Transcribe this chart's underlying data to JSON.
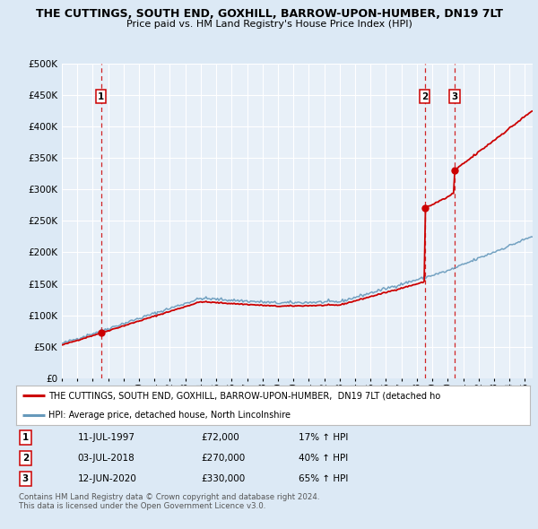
{
  "title": "THE CUTTINGS, SOUTH END, GOXHILL, BARROW-UPON-HUMBER, DN19 7LT",
  "subtitle": "Price paid vs. HM Land Registry's House Price Index (HPI)",
  "bg_color": "#dce9f5",
  "plot_bg_color": "#e8f0f8",
  "ylim": [
    0,
    500000
  ],
  "yticks": [
    0,
    50000,
    100000,
    150000,
    200000,
    250000,
    300000,
    350000,
    400000,
    450000,
    500000
  ],
  "ytick_labels": [
    "£0",
    "£50K",
    "£100K",
    "£150K",
    "£200K",
    "£250K",
    "£300K",
    "£350K",
    "£400K",
    "£450K",
    "£500K"
  ],
  "xlim_start": 1995.0,
  "xlim_end": 2025.5,
  "sale_dates": [
    1997.53,
    2018.5,
    2020.45
  ],
  "sale_prices": [
    72000,
    270000,
    330000
  ],
  "sale_labels": [
    "1",
    "2",
    "3"
  ],
  "sale_date_strs": [
    "11-JUL-1997",
    "03-JUL-2018",
    "12-JUN-2020"
  ],
  "sale_price_strs": [
    "£72,000",
    "£270,000",
    "£330,000"
  ],
  "sale_hpi_strs": [
    "17% ↑ HPI",
    "40% ↑ HPI",
    "65% ↑ HPI"
  ],
  "red_color": "#cc0000",
  "blue_color": "#6699bb",
  "legend_label_red": "THE CUTTINGS, SOUTH END, GOXHILL, BARROW-UPON-HUMBER,  DN19 7LT (detached ho",
  "legend_label_blue": "HPI: Average price, detached house, North Lincolnshire",
  "footnote": "Contains HM Land Registry data © Crown copyright and database right 2024.\nThis data is licensed under the Open Government Licence v3.0."
}
